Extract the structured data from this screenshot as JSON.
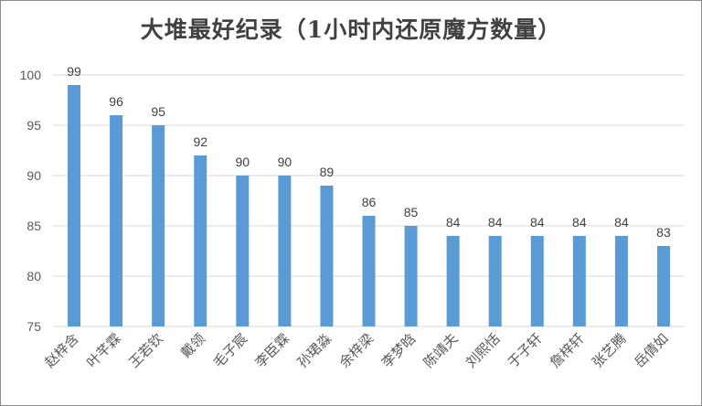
{
  "chart_data": {
    "type": "bar",
    "title": "大堆最好纪录（1小时内还原魔方数量）",
    "xlabel": "",
    "ylabel": "",
    "categories": [
      "赵梓含",
      "叶芊霖",
      "王若钦",
      "戴领",
      "毛子宸",
      "李臣霖",
      "孙珺淼",
      "余梓梁",
      "李梦晗",
      "陈靖夫",
      "刘熙恬",
      "于子轩",
      "詹梓轩",
      "张艺腾",
      "岳倩如"
    ],
    "values": [
      99,
      96,
      95,
      92,
      90,
      90,
      89,
      86,
      85,
      84,
      84,
      84,
      84,
      84,
      83
    ],
    "ylim": [
      75,
      100
    ],
    "yticks": [
      75,
      80,
      85,
      90,
      95,
      100
    ],
    "grid": true,
    "data_labels": true,
    "legend": "none",
    "bar_color": "#5B9BD5",
    "grid_color": "#d9d9d9"
  }
}
